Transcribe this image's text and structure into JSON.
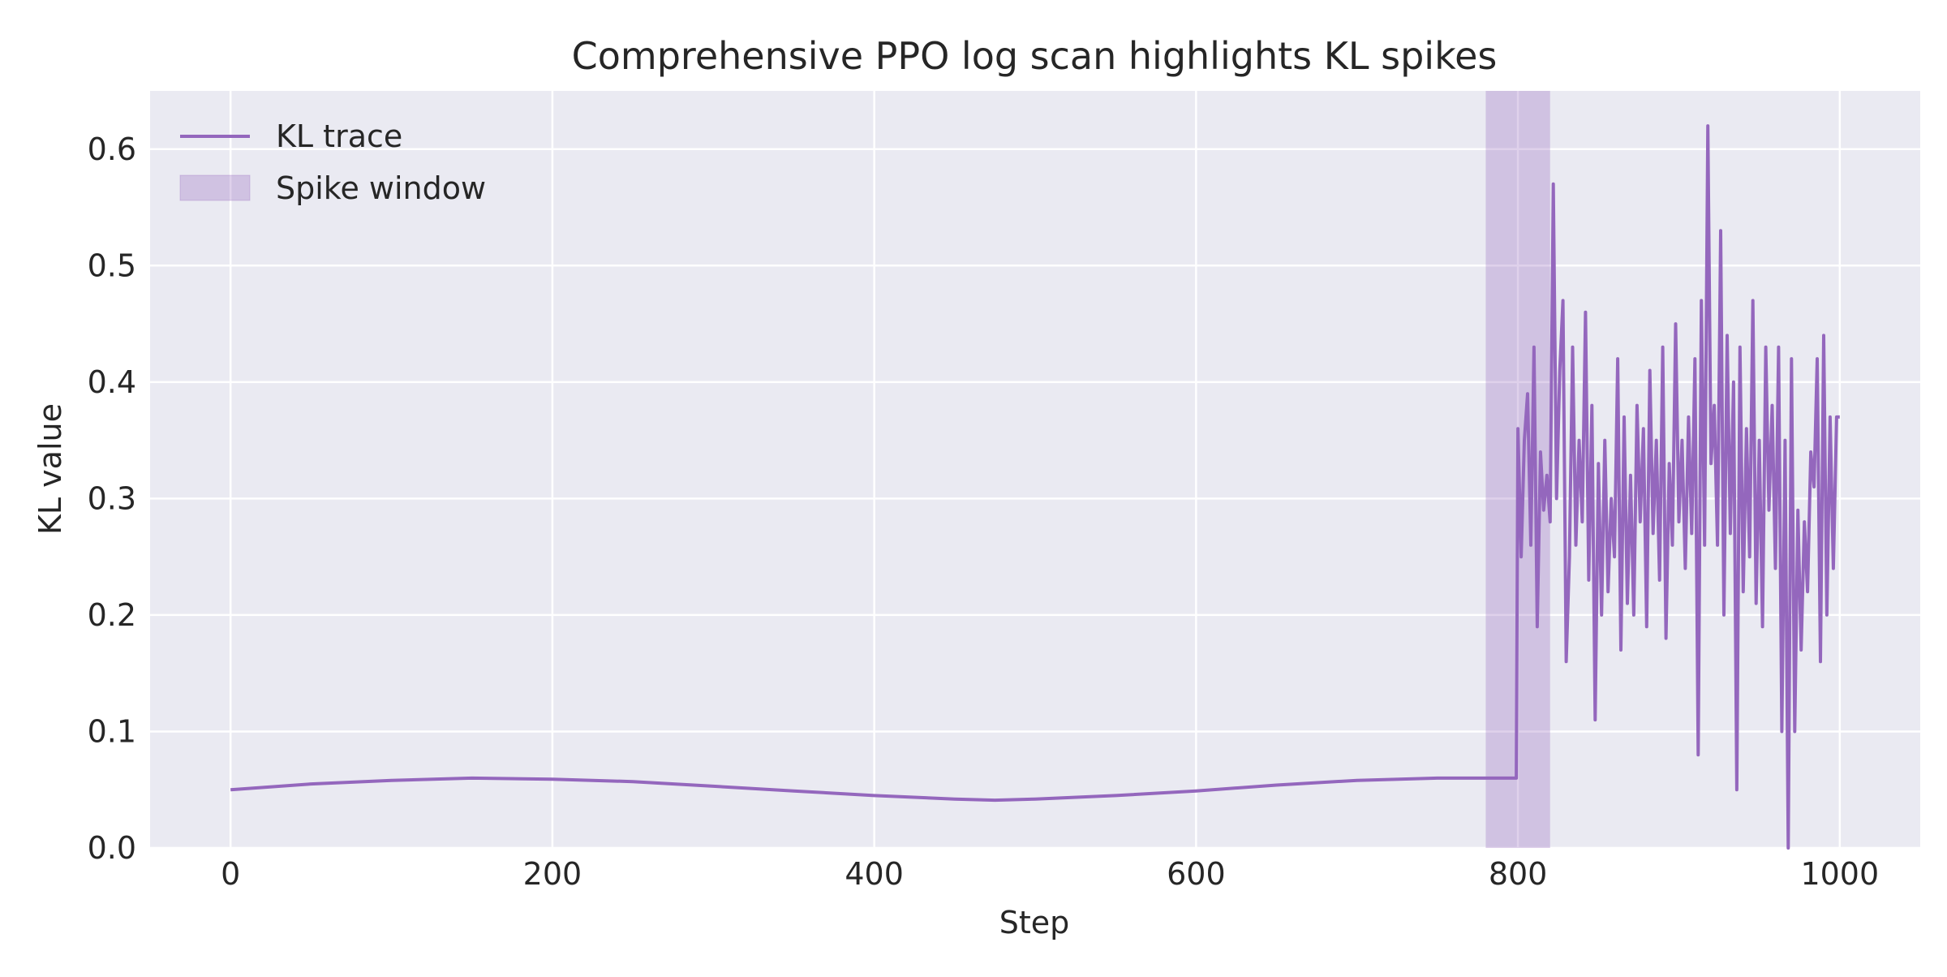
{
  "chart_data": {
    "type": "line",
    "title": "Comprehensive PPO log scan highlights KL spikes",
    "xlabel": "Step",
    "ylabel": "KL value",
    "xlim": [
      -50,
      1050
    ],
    "ylim": [
      0.0,
      0.65
    ],
    "xticks": [
      0,
      200,
      400,
      600,
      800,
      1000
    ],
    "yticks": [
      0.0,
      0.1,
      0.2,
      0.3,
      0.4,
      0.5,
      0.6
    ],
    "xtick_labels": [
      "0",
      "200",
      "400",
      "600",
      "800",
      "1000"
    ],
    "ytick_labels": [
      "0.0",
      "0.1",
      "0.2",
      "0.3",
      "0.4",
      "0.5",
      "0.6"
    ],
    "grid": true,
    "legend_position": "top-left",
    "series": [
      {
        "name": "KL trace",
        "type": "line",
        "color": "#9467bd",
        "x": [
          0,
          50,
          100,
          150,
          200,
          250,
          300,
          350,
          400,
          450,
          475,
          500,
          550,
          600,
          650,
          700,
          750,
          799,
          800,
          802,
          804,
          806,
          808,
          810,
          812,
          814,
          816,
          818,
          820,
          822,
          824,
          826,
          828,
          830,
          832,
          834,
          836,
          838,
          840,
          842,
          844,
          846,
          848,
          850,
          852,
          854,
          856,
          858,
          860,
          862,
          864,
          866,
          868,
          870,
          872,
          874,
          876,
          878,
          880,
          882,
          884,
          886,
          888,
          890,
          892,
          894,
          896,
          898,
          900,
          902,
          904,
          906,
          908,
          910,
          912,
          914,
          916,
          918,
          920,
          922,
          924,
          926,
          928,
          930,
          932,
          934,
          936,
          938,
          940,
          942,
          944,
          946,
          948,
          950,
          952,
          954,
          956,
          958,
          960,
          962,
          964,
          966,
          968,
          970,
          972,
          974,
          976,
          978,
          980,
          982,
          984,
          986,
          988,
          990,
          992,
          994,
          996,
          998,
          1000
        ],
        "values": [
          0.05,
          0.055,
          0.058,
          0.06,
          0.059,
          0.057,
          0.053,
          0.049,
          0.045,
          0.042,
          0.041,
          0.042,
          0.045,
          0.049,
          0.054,
          0.058,
          0.06,
          0.06,
          0.36,
          0.25,
          0.35,
          0.39,
          0.26,
          0.43,
          0.19,
          0.34,
          0.29,
          0.32,
          0.28,
          0.57,
          0.3,
          0.41,
          0.47,
          0.16,
          0.25,
          0.43,
          0.26,
          0.35,
          0.28,
          0.46,
          0.23,
          0.38,
          0.11,
          0.33,
          0.2,
          0.35,
          0.22,
          0.3,
          0.25,
          0.42,
          0.17,
          0.37,
          0.21,
          0.32,
          0.2,
          0.38,
          0.28,
          0.36,
          0.19,
          0.41,
          0.27,
          0.35,
          0.23,
          0.43,
          0.18,
          0.33,
          0.26,
          0.45,
          0.28,
          0.35,
          0.24,
          0.37,
          0.27,
          0.42,
          0.08,
          0.47,
          0.26,
          0.62,
          0.33,
          0.38,
          0.26,
          0.53,
          0.2,
          0.44,
          0.27,
          0.4,
          0.05,
          0.43,
          0.22,
          0.36,
          0.25,
          0.47,
          0.21,
          0.35,
          0.19,
          0.43,
          0.29,
          0.38,
          0.24,
          0.43,
          0.1,
          0.35,
          0.0,
          0.42,
          0.1,
          0.29,
          0.17,
          0.28,
          0.22,
          0.34,
          0.31,
          0.42,
          0.16,
          0.44,
          0.2,
          0.37,
          0.24,
          0.37,
          0.37
        ]
      }
    ],
    "shaded_region": {
      "name": "Spike window",
      "x_start": 780,
      "x_end": 820,
      "color": "#9467bd",
      "opacity": 0.3
    }
  }
}
